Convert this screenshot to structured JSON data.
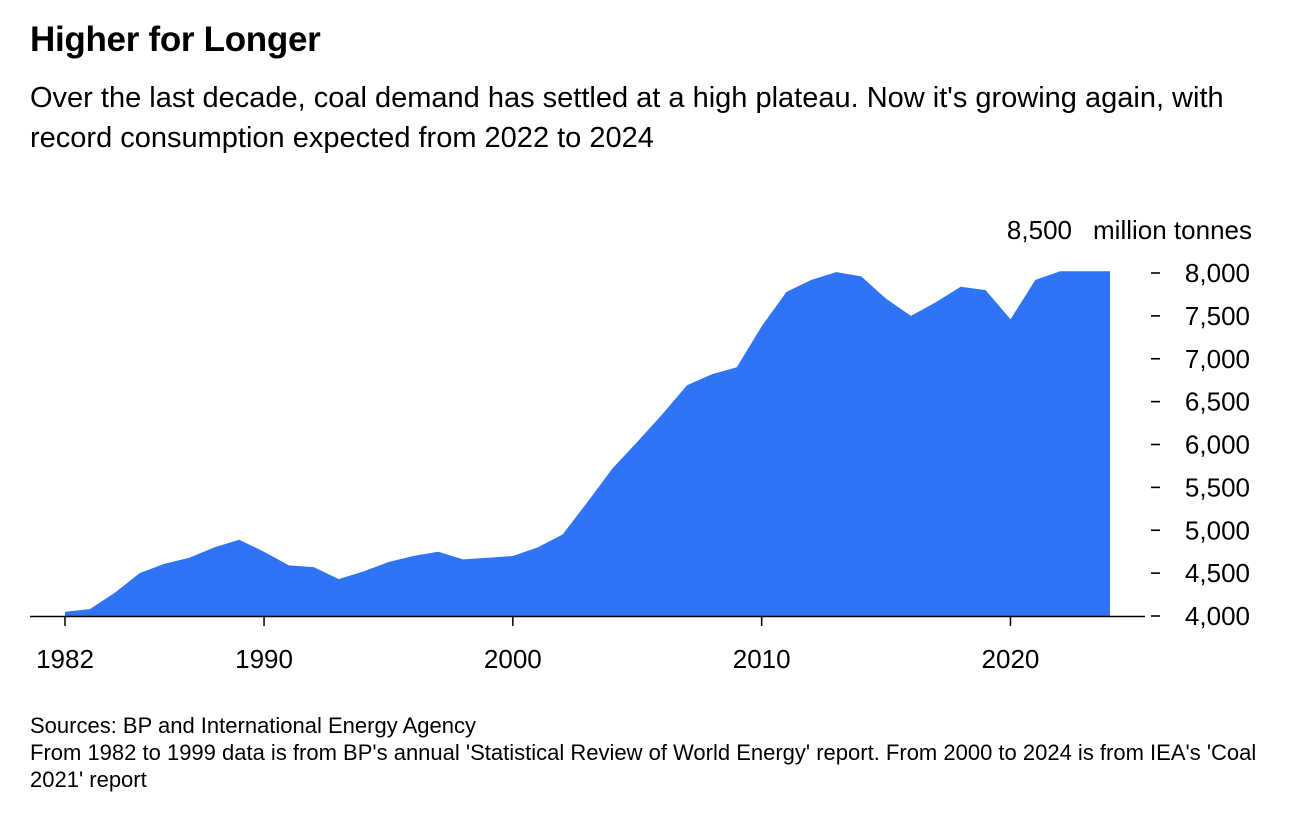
{
  "title": "Higher for Longer",
  "subtitle": "Over the last decade, coal demand has settled at a high plateau. Now it's growing again, with record consumption expected from 2022 to 2024",
  "notes": {
    "sources": "Sources: BP and International Energy Agency",
    "methodology": "From 1982 to 1999 data is from BP's annual 'Statistical Review of World Energy' report. From 2000 to 2024 is from IEA's 'Coal 2021' report"
  },
  "colors": {
    "area": "#2f74f5",
    "axis": "#000000",
    "text": "#000000"
  },
  "chart_data": {
    "type": "area",
    "title": "Higher for Longer",
    "ylabel": "million tonnes",
    "xlim": [
      1982,
      2025
    ],
    "ylim": [
      4000,
      8500
    ],
    "x_ticks": [
      {
        "value": 1982,
        "label": "1982"
      },
      {
        "value": 1990,
        "label": "1990"
      },
      {
        "value": 2000,
        "label": "2000"
      },
      {
        "value": 2010,
        "label": "2010"
      },
      {
        "value": 2020,
        "label": "2020"
      }
    ],
    "y_ticks": [
      {
        "value": 4000,
        "label": "4,000"
      },
      {
        "value": 4500,
        "label": "4,500"
      },
      {
        "value": 5000,
        "label": "5,000"
      },
      {
        "value": 5500,
        "label": "5,500"
      },
      {
        "value": 6000,
        "label": "6,000"
      },
      {
        "value": 6500,
        "label": "6,500"
      },
      {
        "value": 7000,
        "label": "7,000"
      },
      {
        "value": 7500,
        "label": "7,500"
      },
      {
        "value": 8000,
        "label": "8,000"
      },
      {
        "value": 8500,
        "label": "8,500"
      }
    ],
    "y_axis_position": "right",
    "grid": false,
    "series": [
      {
        "x": [
          1982,
          1983,
          1984,
          1985,
          1986,
          1987,
          1988,
          1989,
          1990,
          1991,
          1992,
          1993,
          1994,
          1995,
          1996,
          1997,
          1998,
          1999,
          2000,
          2001,
          2002,
          2003,
          2004,
          2005,
          2006,
          2007,
          2008,
          2009,
          2010,
          2011,
          2012,
          2013,
          2014,
          2015,
          2016,
          2017,
          2018,
          2019,
          2020,
          2021,
          2022,
          2023,
          2024
        ],
        "values": [
          4050,
          4080,
          4270,
          4500,
          4610,
          4680,
          4800,
          4890,
          4750,
          4590,
          4570,
          4430,
          4520,
          4630,
          4700,
          4750,
          4660,
          4680,
          4700,
          4800,
          4950,
          5330,
          5720,
          6030,
          6350,
          6690,
          6820,
          6900,
          7380,
          7780,
          7920,
          8010,
          7960,
          7700,
          7500,
          7660,
          7840,
          7800,
          7460,
          7920,
          8020,
          8020,
          8020
        ]
      }
    ]
  }
}
